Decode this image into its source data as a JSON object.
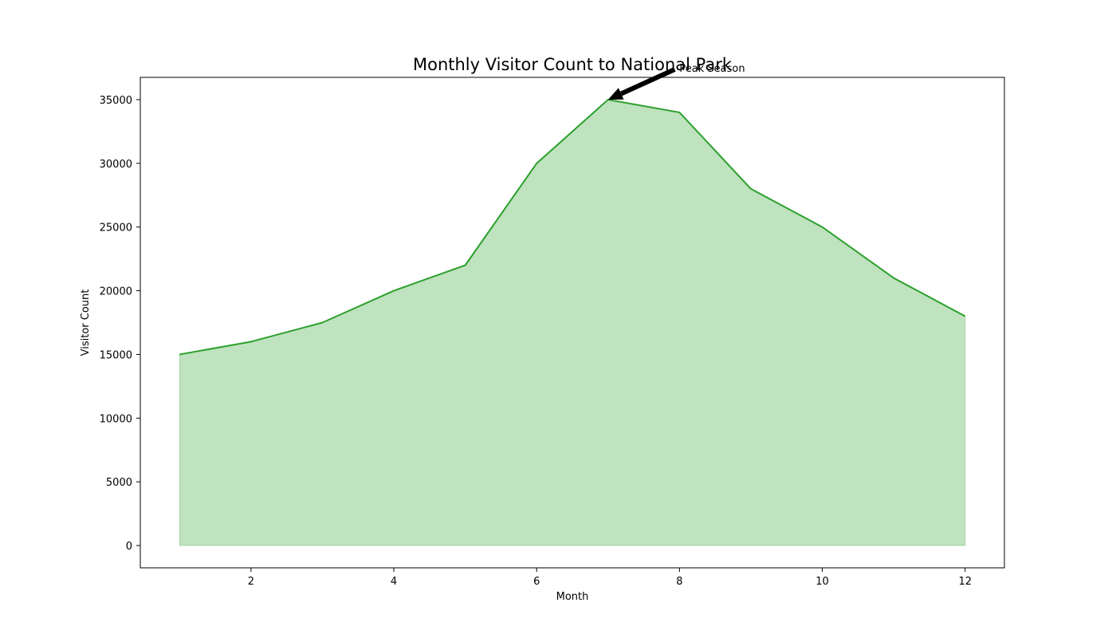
{
  "chart_data": {
    "type": "area",
    "title": "Monthly Visitor Count to National Park",
    "xlabel": "Month",
    "ylabel": "Visitor Count",
    "x": [
      1,
      2,
      3,
      4,
      5,
      6,
      7,
      8,
      9,
      10,
      11,
      12
    ],
    "series": [
      {
        "values": [
          15000,
          16000,
          17500,
          20000,
          22000,
          30000,
          35000,
          34000,
          28000,
          25000,
          21000,
          18000
        ],
        "line_color": "#2ca02c",
        "fill_color": "#2ca02c",
        "fill_opacity": 0.3
      }
    ],
    "xlim": [
      0.45,
      12.55
    ],
    "ylim": [
      -1750,
      36750
    ],
    "xticks": [
      2,
      4,
      6,
      8,
      10,
      12
    ],
    "yticks": [
      0,
      5000,
      10000,
      15000,
      20000,
      25000,
      30000,
      35000
    ],
    "grid": false,
    "annotations": [
      {
        "text": "Peak Season",
        "x": 7,
        "y": 35000,
        "text_x": 8,
        "text_y": 37500
      }
    ]
  }
}
